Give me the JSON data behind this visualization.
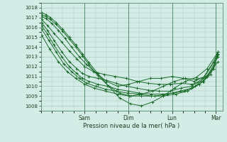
{
  "title": "",
  "xlabel": "Pression niveau de la mer( hPa )",
  "background_color": "#d4ece6",
  "grid_color": "#aaccc4",
  "line_color": "#1a6b2a",
  "marker": "+",
  "ylim": [
    1007.5,
    1018.5
  ],
  "yticks": [
    1008,
    1009,
    1010,
    1011,
    1012,
    1013,
    1014,
    1015,
    1016,
    1017,
    1018
  ],
  "day_labels": [
    "Sam",
    "Dim",
    "Lun",
    "Mar"
  ],
  "day_positions": [
    1.0,
    2.0,
    3.0,
    4.0
  ],
  "xlim": [
    0,
    4.15
  ],
  "series": [
    {
      "x": [
        0.02,
        0.12,
        0.22,
        0.35,
        0.5,
        0.65,
        0.8,
        0.95,
        1.1,
        1.3,
        1.55,
        1.8,
        2.05,
        2.3,
        2.55,
        2.8,
        3.05,
        3.3,
        3.55,
        3.8,
        4.05
      ],
      "y": [
        1017.5,
        1017.3,
        1017.0,
        1016.5,
        1015.8,
        1015.0,
        1014.2,
        1013.3,
        1012.4,
        1011.3,
        1010.0,
        1008.8,
        1008.2,
        1008.0,
        1008.4,
        1009.0,
        1009.8,
        1010.5,
        1010.9,
        1011.8,
        1013.5
      ]
    },
    {
      "x": [
        0.02,
        0.12,
        0.22,
        0.35,
        0.5,
        0.65,
        0.8,
        0.95,
        1.1,
        1.3,
        1.55,
        1.8,
        2.05,
        2.3,
        2.55,
        2.8,
        3.05,
        3.3,
        3.55,
        3.8,
        4.05
      ],
      "y": [
        1017.3,
        1017.1,
        1016.8,
        1016.3,
        1015.6,
        1014.8,
        1014.0,
        1013.1,
        1012.2,
        1011.1,
        1010.0,
        1009.3,
        1009.0,
        1009.2,
        1009.5,
        1010.0,
        1010.5,
        1010.8,
        1010.7,
        1011.0,
        1013.0
      ]
    },
    {
      "x": [
        0.02,
        0.12,
        0.25,
        0.4,
        0.55,
        0.7,
        0.88,
        1.05,
        1.25,
        1.5,
        1.75,
        2.0,
        2.25,
        2.5,
        2.75,
        3.0,
        3.25,
        3.5,
        3.75,
        4.05
      ],
      "y": [
        1017.1,
        1016.9,
        1016.4,
        1015.7,
        1014.9,
        1014.0,
        1013.0,
        1012.2,
        1011.4,
        1010.5,
        1010.0,
        1010.2,
        1010.5,
        1010.8,
        1010.8,
        1011.0,
        1010.8,
        1010.5,
        1011.0,
        1013.2
      ]
    },
    {
      "x": [
        0.02,
        0.15,
        0.3,
        0.48,
        0.65,
        0.82,
        1.0,
        1.2,
        1.45,
        1.7,
        1.95,
        2.2,
        2.45,
        2.7,
        2.95,
        3.2,
        3.45,
        3.7,
        3.95,
        4.05
      ],
      "y": [
        1016.8,
        1016.2,
        1015.4,
        1014.5,
        1013.6,
        1012.8,
        1012.0,
        1011.5,
        1011.2,
        1011.0,
        1010.8,
        1010.5,
        1010.3,
        1010.2,
        1010.2,
        1010.3,
        1010.2,
        1010.5,
        1011.8,
        1013.5
      ]
    },
    {
      "x": [
        0.02,
        0.15,
        0.3,
        0.48,
        0.65,
        0.82,
        0.95,
        1.1,
        1.3,
        1.5,
        1.72,
        1.95,
        2.2,
        2.45,
        2.7,
        2.95,
        3.2,
        3.45,
        3.7,
        3.95,
        4.05
      ],
      "y": [
        1016.5,
        1015.7,
        1014.7,
        1013.5,
        1012.5,
        1011.8,
        1011.3,
        1011.0,
        1010.8,
        1010.6,
        1010.3,
        1010.0,
        1009.8,
        1009.6,
        1009.5,
        1009.5,
        1009.8,
        1010.0,
        1010.8,
        1012.5,
        1013.5
      ]
    },
    {
      "x": [
        0.02,
        0.15,
        0.3,
        0.48,
        0.65,
        0.82,
        0.95,
        1.1,
        1.3,
        1.52,
        1.75,
        2.0,
        2.25,
        2.52,
        2.78,
        3.02,
        3.28,
        3.52,
        3.78,
        4.05
      ],
      "y": [
        1016.2,
        1015.3,
        1014.2,
        1013.0,
        1012.0,
        1011.3,
        1010.8,
        1010.5,
        1010.2,
        1010.0,
        1009.7,
        1009.5,
        1009.3,
        1009.2,
        1009.2,
        1009.3,
        1009.5,
        1010.0,
        1011.0,
        1012.5
      ]
    },
    {
      "x": [
        0.02,
        0.18,
        0.35,
        0.52,
        0.7,
        0.88,
        1.05,
        1.25,
        1.48,
        1.72,
        1.98,
        2.25,
        2.52,
        2.8,
        3.08,
        3.35,
        3.62,
        3.88,
        4.05
      ],
      "y": [
        1015.8,
        1014.7,
        1013.5,
        1012.3,
        1011.5,
        1010.8,
        1010.3,
        1010.0,
        1009.7,
        1009.5,
        1009.3,
        1009.2,
        1009.0,
        1009.0,
        1009.2,
        1009.5,
        1010.2,
        1011.2,
        1013.3
      ]
    },
    {
      "x": [
        0.02,
        0.2,
        0.4,
        0.6,
        0.8,
        1.0,
        1.22,
        1.48,
        1.75,
        2.02,
        2.3,
        2.6,
        2.9,
        3.18,
        3.45,
        3.72,
        3.95,
        4.05
      ],
      "y": [
        1015.2,
        1013.8,
        1012.5,
        1011.5,
        1010.8,
        1010.2,
        1009.8,
        1009.5,
        1009.2,
        1009.0,
        1009.0,
        1009.0,
        1009.2,
        1009.5,
        1009.8,
        1010.5,
        1011.8,
        1013.5
      ]
    }
  ]
}
